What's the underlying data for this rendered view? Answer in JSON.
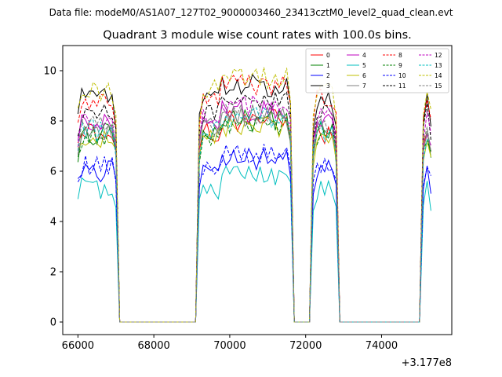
{
  "chart_data": {
    "type": "line",
    "suptitle": "Data file: modeM0/AS1A07_127T02_9000003460_23413cztM0_level2_quad_clean.evt",
    "title": "Quadrant 3 module wise count rates with 100.0s bins.",
    "xlabel": "",
    "ylabel": "",
    "x_offset_label": "+3.177e8",
    "xlim": [
      65600,
      75850
    ],
    "ylim": [
      -0.5,
      11.0
    ],
    "xticks": [
      66000,
      68000,
      70000,
      72000,
      74000
    ],
    "xtick_labels": [
      "66000",
      "68000",
      "70000",
      "72000",
      "74000"
    ],
    "yticks": [
      0,
      2,
      4,
      6,
      8,
      10
    ],
    "ytick_labels": [
      "0",
      "2",
      "4",
      "6",
      "8",
      "10"
    ],
    "grid": false,
    "legend_location": "top-right",
    "legend_columns": 4,
    "segments": [
      {
        "start": 66000,
        "end": 67000
      },
      {
        "start": 69200,
        "end": 71600
      },
      {
        "start": 72200,
        "end": 72800
      },
      {
        "start": 75100,
        "end": 75300
      }
    ],
    "series": [
      {
        "name": "0",
        "color": "#ff0000",
        "dash": "solid",
        "level": 7.5,
        "step1": 3
      },
      {
        "name": "1",
        "color": "#008000",
        "dash": "solid",
        "level": 7.5,
        "step1": 5
      },
      {
        "name": "2",
        "color": "#0000ff",
        "dash": "solid",
        "level": 6.0,
        "step1": 7
      },
      {
        "name": "3",
        "color": "#000000",
        "dash": "solid",
        "level": 8.9,
        "step1": 9
      },
      {
        "name": "4",
        "color": "#bf00bf",
        "dash": "solid",
        "level": 7.9,
        "step1": 11
      },
      {
        "name": "5",
        "color": "#00bfbf",
        "dash": "solid",
        "level": 5.3,
        "step1": 13
      },
      {
        "name": "6",
        "color": "#bfbf00",
        "dash": "solid",
        "level": 7.3,
        "step1": 15
      },
      {
        "name": "7",
        "color": "#808080",
        "dash": "solid",
        "level": 7.7,
        "step1": 17
      },
      {
        "name": "8",
        "color": "#ff0000",
        "dash": "dashed",
        "level": 8.9,
        "step1": 19
      },
      {
        "name": "9",
        "color": "#008000",
        "dash": "dashed",
        "level": 7.4,
        "step1": 21
      },
      {
        "name": "10",
        "color": "#0000ff",
        "dash": "dashed",
        "level": 6.2,
        "step1": 23
      },
      {
        "name": "11",
        "color": "#000000",
        "dash": "dashed",
        "level": 8.4,
        "step1": 25
      },
      {
        "name": "12",
        "color": "#bf00bf",
        "dash": "dashed",
        "level": 8.1,
        "step1": 27
      },
      {
        "name": "13",
        "color": "#00bfbf",
        "dash": "dashed",
        "level": 7.6,
        "step1": 29
      },
      {
        "name": "14",
        "color": "#bfbf00",
        "dash": "dashed",
        "level": 9.2,
        "step1": 31
      },
      {
        "name": "15",
        "color": "#808080",
        "dash": "dashed",
        "level": 7.8,
        "step1": 33
      }
    ]
  }
}
